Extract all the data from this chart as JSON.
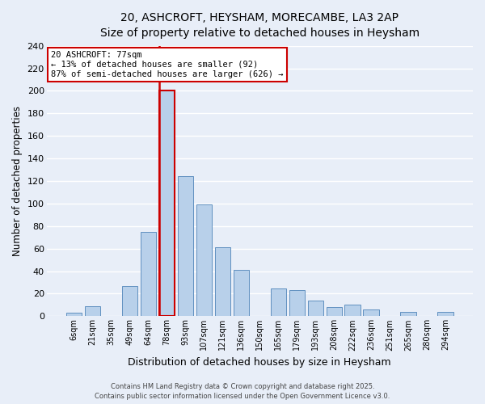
{
  "title": "20, ASHCROFT, HEYSHAM, MORECAMBE, LA3 2AP",
  "subtitle": "Size of property relative to detached houses in Heysham",
  "xlabel": "Distribution of detached houses by size in Heysham",
  "ylabel": "Number of detached properties",
  "bin_labels": [
    "6sqm",
    "21sqm",
    "35sqm",
    "49sqm",
    "64sqm",
    "78sqm",
    "93sqm",
    "107sqm",
    "121sqm",
    "136sqm",
    "150sqm",
    "165sqm",
    "179sqm",
    "193sqm",
    "208sqm",
    "222sqm",
    "236sqm",
    "251sqm",
    "265sqm",
    "280sqm",
    "294sqm"
  ],
  "bar_values": [
    3,
    9,
    0,
    27,
    75,
    200,
    124,
    99,
    61,
    41,
    0,
    25,
    23,
    14,
    8,
    10,
    6,
    0,
    4,
    0,
    4
  ],
  "bar_color": "#b8d0ea",
  "bar_edge_color": "#6090c0",
  "highlight_bar_index": 5,
  "highlight_color": "#cc0000",
  "ylim": [
    0,
    240
  ],
  "yticks": [
    0,
    20,
    40,
    60,
    80,
    100,
    120,
    140,
    160,
    180,
    200,
    220,
    240
  ],
  "annotation_title": "20 ASHCROFT: 77sqm",
  "annotation_line1": "← 13% of detached houses are smaller (92)",
  "annotation_line2": "87% of semi-detached houses are larger (626) →",
  "annotation_box_color": "#ffffff",
  "annotation_box_edge": "#cc0000",
  "footer_line1": "Contains HM Land Registry data © Crown copyright and database right 2025.",
  "footer_line2": "Contains public sector information licensed under the Open Government Licence v3.0.",
  "background_color": "#e8eef8",
  "grid_color": "#ffffff",
  "title_fontsize": 11,
  "subtitle_fontsize": 9.5
}
